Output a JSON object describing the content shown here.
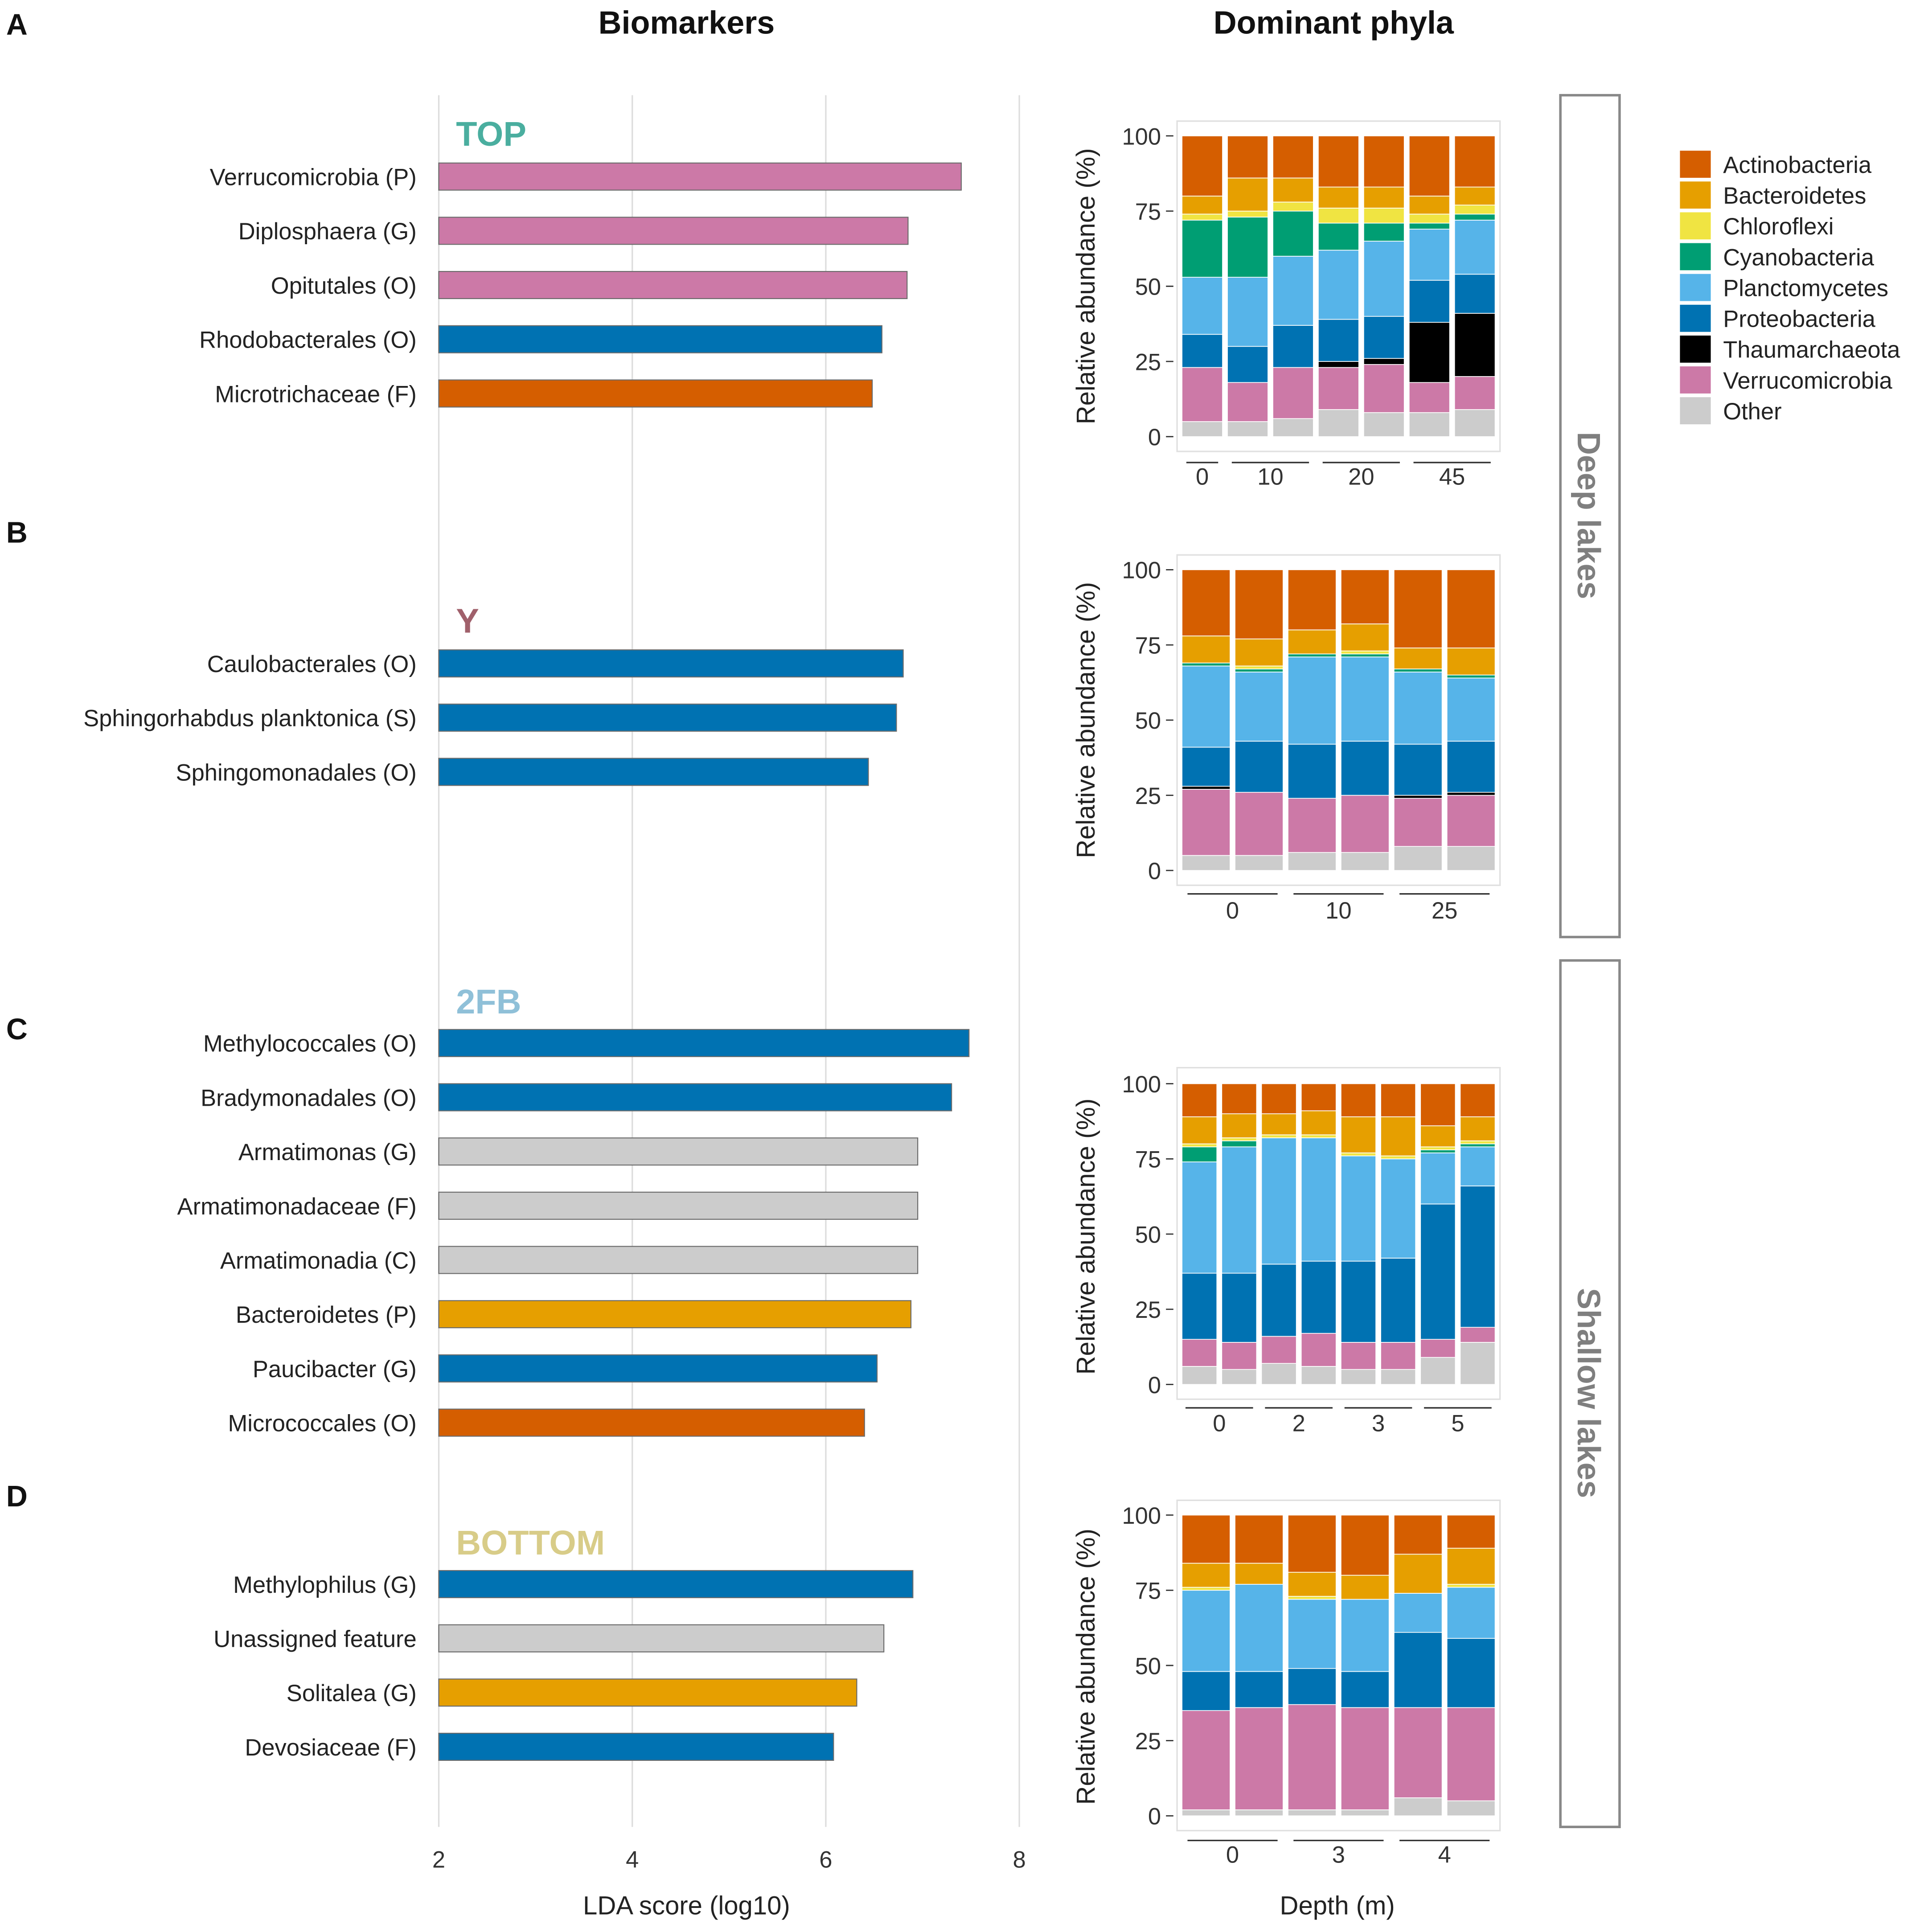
{
  "headings": {
    "biomarkers": "Biomarkers",
    "dominant": "Dominant phyla"
  },
  "colors": {
    "Actinobacteria": "#D55E00",
    "Bacteroidetes": "#E69F00",
    "Chloroflexi": "#F0E442",
    "Cyanobacteria": "#009E73",
    "Planctomycetes": "#56B4E9",
    "Proteobacteria": "#0072B2",
    "Thaumarchaeota": "#000000",
    "Verrucomicrobia": "#CC79A7",
    "Other": "#CCCCCC",
    "Unassigned": "#CCCCCC",
    "Armatimonadetes": "#CCCCCC",
    "gridline": "#DDDDDD",
    "axis_text": "#333333",
    "strip_border": "#888888",
    "strip_text": "#7F7F7F"
  },
  "legend": {
    "entries": [
      "Actinobacteria",
      "Bacteroidetes",
      "Chloroflexi",
      "Cyanobacteria",
      "Planctomycetes",
      "Proteobacteria",
      "Thaumarchaeota",
      "Verrucomicrobia",
      "Other"
    ]
  },
  "strips": {
    "deep": "Deep lakes",
    "shallow": "Shallow lakes"
  },
  "chart_data": [
    {
      "id": "lda",
      "type": "bar",
      "orientation": "horizontal",
      "title": "Biomarkers",
      "xlabel": "LDA score (log10)",
      "xlim": [
        2,
        8
      ],
      "xticks": [
        2,
        4,
        6,
        8
      ],
      "grid": true,
      "groups": [
        {
          "panel": "A",
          "label": "TOP",
          "label_color": "#4AAE9F",
          "bars": [
            {
              "name": "Verrucomicrobia (P)",
              "value": 7.4,
              "phylum": "Verrucomicrobia"
            },
            {
              "name": "Diplosphaera (G)",
              "value": 6.85,
              "phylum": "Verrucomicrobia"
            },
            {
              "name": "Opitutales (O)",
              "value": 6.84,
              "phylum": "Verrucomicrobia"
            },
            {
              "name": "Rhodobacterales (O)",
              "value": 6.58,
              "phylum": "Proteobacteria"
            },
            {
              "name": "Microtrichaceae (F)",
              "value": 6.48,
              "phylum": "Actinobacteria"
            }
          ]
        },
        {
          "panel": "B",
          "label": "Y",
          "label_color": "#A0606B",
          "bars": [
            {
              "name": "Caulobacterales (O)",
              "value": 6.8,
              "phylum": "Proteobacteria"
            },
            {
              "name": "Sphingorhabdus planktonica (S)",
              "value": 6.73,
              "phylum": "Proteobacteria"
            },
            {
              "name": "Sphingomonadales (O)",
              "value": 6.44,
              "phylum": "Proteobacteria"
            }
          ]
        },
        {
          "panel": "C",
          "label": "2FB",
          "label_color": "#8FC0D8",
          "bars": [
            {
              "name": "Methylococcales (O)",
              "value": 7.48,
              "phylum": "Proteobacteria"
            },
            {
              "name": "Bradymonadales (O)",
              "value": 7.3,
              "phylum": "Proteobacteria"
            },
            {
              "name": "Armatimonas (G)",
              "value": 6.95,
              "phylum": "Armatimonadetes"
            },
            {
              "name": "Armatimonadaceae (F)",
              "value": 6.95,
              "phylum": "Armatimonadetes"
            },
            {
              "name": "Armatimonadia (C)",
              "value": 6.95,
              "phylum": "Armatimonadetes"
            },
            {
              "name": "Bacteroidetes (P)",
              "value": 6.88,
              "phylum": "Bacteroidetes"
            },
            {
              "name": "Paucibacter (G)",
              "value": 6.53,
              "phylum": "Proteobacteria"
            },
            {
              "name": "Micrococcales (O)",
              "value": 6.4,
              "phylum": "Actinobacteria"
            }
          ]
        },
        {
          "panel": "D",
          "label": "BOTTOM",
          "label_color": "#D8CC88",
          "bars": [
            {
              "name": "Methylophilus (G)",
              "value": 6.9,
              "phylum": "Proteobacteria"
            },
            {
              "name": "Unassigned feature",
              "value": 6.6,
              "phylum": "Unassigned"
            },
            {
              "name": "Solitalea (G)",
              "value": 6.32,
              "phylum": "Bacteroidetes"
            },
            {
              "name": "Devosiaceae (F)",
              "value": 6.08,
              "phylum": "Proteobacteria"
            }
          ]
        }
      ]
    },
    {
      "id": "phyla-A",
      "panel": "A",
      "type": "bar",
      "stacked": true,
      "title": "Dominant phyla",
      "ylabel": "Relative abundance (%)",
      "ylim": [
        0,
        100
      ],
      "yticks": [
        0,
        25,
        50,
        75,
        100
      ],
      "depth_groups": [
        {
          "label": "0",
          "n": 1
        },
        {
          "label": "10",
          "n": 2
        },
        {
          "label": "20",
          "n": 2
        },
        {
          "label": "45",
          "n": 2
        }
      ],
      "series_order": [
        "Other",
        "Verrucomicrobia",
        "Thaumarchaeota",
        "Proteobacteria",
        "Planctomycetes",
        "Cyanobacteria",
        "Chloroflexi",
        "Bacteroidetes",
        "Actinobacteria"
      ],
      "samples": [
        {
          "depth": "0",
          "values": [
            5,
            18,
            0,
            11,
            19,
            19,
            2,
            6,
            20
          ]
        },
        {
          "depth": "10",
          "values": [
            5,
            13,
            0,
            12,
            23,
            20,
            2,
            11,
            14
          ]
        },
        {
          "depth": "10",
          "values": [
            6,
            17,
            0,
            14,
            23,
            15,
            3,
            8,
            14
          ]
        },
        {
          "depth": "20",
          "values": [
            9,
            14,
            2,
            14,
            23,
            9,
            5,
            7,
            17
          ]
        },
        {
          "depth": "20",
          "values": [
            8,
            16,
            2,
            14,
            25,
            6,
            5,
            7,
            17
          ]
        },
        {
          "depth": "45",
          "values": [
            8,
            10,
            20,
            14,
            17,
            2,
            3,
            6,
            20
          ]
        },
        {
          "depth": "45",
          "values": [
            9,
            11,
            21,
            13,
            18,
            2,
            3,
            6,
            17
          ]
        }
      ]
    },
    {
      "id": "phyla-B",
      "panel": "B",
      "type": "bar",
      "stacked": true,
      "ylabel": "Relative abundance (%)",
      "ylim": [
        0,
        100
      ],
      "yticks": [
        0,
        25,
        50,
        75,
        100
      ],
      "depth_groups": [
        {
          "label": "0",
          "n": 2
        },
        {
          "label": "10",
          "n": 2
        },
        {
          "label": "25",
          "n": 2
        }
      ],
      "series_order": [
        "Other",
        "Verrucomicrobia",
        "Thaumarchaeota",
        "Proteobacteria",
        "Planctomycetes",
        "Cyanobacteria",
        "Chloroflexi",
        "Bacteroidetes",
        "Actinobacteria"
      ],
      "samples": [
        {
          "depth": "0",
          "values": [
            5,
            22,
            1,
            13,
            27,
            1,
            0,
            9,
            22
          ]
        },
        {
          "depth": "0",
          "values": [
            5,
            21,
            0,
            17,
            23,
            1,
            1,
            9,
            23
          ]
        },
        {
          "depth": "10",
          "values": [
            6,
            18,
            0,
            18,
            29,
            1,
            0,
            8,
            20
          ]
        },
        {
          "depth": "10",
          "values": [
            6,
            19,
            0,
            18,
            28,
            1,
            1,
            9,
            18
          ]
        },
        {
          "depth": "25",
          "values": [
            8,
            16,
            1,
            17,
            24,
            1,
            0,
            7,
            26
          ]
        },
        {
          "depth": "25",
          "values": [
            8,
            17,
            1,
            17,
            21,
            1,
            0,
            9,
            26
          ]
        }
      ]
    },
    {
      "id": "phyla-C",
      "panel": "C",
      "type": "bar",
      "stacked": true,
      "ylabel": "Relative abundance (%)",
      "ylim": [
        0,
        100
      ],
      "yticks": [
        0,
        25,
        50,
        75,
        100
      ],
      "depth_groups": [
        {
          "label": "0",
          "n": 2
        },
        {
          "label": "2",
          "n": 2
        },
        {
          "label": "3",
          "n": 2
        },
        {
          "label": "5",
          "n": 2
        }
      ],
      "series_order": [
        "Other",
        "Verrucomicrobia",
        "Thaumarchaeota",
        "Proteobacteria",
        "Planctomycetes",
        "Cyanobacteria",
        "Chloroflexi",
        "Bacteroidetes",
        "Actinobacteria"
      ],
      "samples": [
        {
          "depth": "0",
          "values": [
            6,
            9,
            0,
            22,
            37,
            5,
            1,
            9,
            11
          ]
        },
        {
          "depth": "0",
          "values": [
            5,
            9,
            0,
            23,
            42,
            2,
            1,
            8,
            10
          ]
        },
        {
          "depth": "2",
          "values": [
            7,
            9,
            0,
            24,
            42,
            0,
            1,
            7,
            10
          ]
        },
        {
          "depth": "2",
          "values": [
            6,
            11,
            0,
            24,
            41,
            0,
            1,
            8,
            9
          ]
        },
        {
          "depth": "3",
          "values": [
            5,
            9,
            0,
            27,
            35,
            0,
            1,
            12,
            11
          ]
        },
        {
          "depth": "3",
          "values": [
            5,
            9,
            0,
            28,
            33,
            0,
            1,
            13,
            11
          ]
        },
        {
          "depth": "5",
          "values": [
            9,
            6,
            0,
            45,
            17,
            1,
            1,
            7,
            14
          ]
        },
        {
          "depth": "5",
          "values": [
            14,
            5,
            0,
            47,
            13,
            1,
            1,
            8,
            11
          ]
        }
      ]
    },
    {
      "id": "phyla-D",
      "panel": "D",
      "type": "bar",
      "stacked": true,
      "xlabel": "Depth (m)",
      "ylabel": "Relative abundance (%)",
      "ylim": [
        0,
        100
      ],
      "yticks": [
        0,
        25,
        50,
        75,
        100
      ],
      "depth_groups": [
        {
          "label": "0",
          "n": 2
        },
        {
          "label": "3",
          "n": 2
        },
        {
          "label": "4",
          "n": 2
        }
      ],
      "series_order": [
        "Other",
        "Verrucomicrobia",
        "Thaumarchaeota",
        "Proteobacteria",
        "Planctomycetes",
        "Cyanobacteria",
        "Chloroflexi",
        "Bacteroidetes",
        "Actinobacteria"
      ],
      "samples": [
        {
          "depth": "0",
          "values": [
            2,
            33,
            0,
            13,
            27,
            0,
            1,
            8,
            16
          ]
        },
        {
          "depth": "0",
          "values": [
            2,
            34,
            0,
            12,
            29,
            0,
            0,
            7,
            16
          ]
        },
        {
          "depth": "3",
          "values": [
            2,
            35,
            0,
            12,
            23,
            0,
            1,
            8,
            19
          ]
        },
        {
          "depth": "3",
          "values": [
            2,
            34,
            0,
            12,
            24,
            0,
            0,
            8,
            20
          ]
        },
        {
          "depth": "4",
          "values": [
            6,
            30,
            0,
            25,
            13,
            0,
            0,
            13,
            13
          ]
        },
        {
          "depth": "4",
          "values": [
            5,
            31,
            0,
            23,
            17,
            0,
            1,
            12,
            11
          ]
        }
      ]
    }
  ]
}
